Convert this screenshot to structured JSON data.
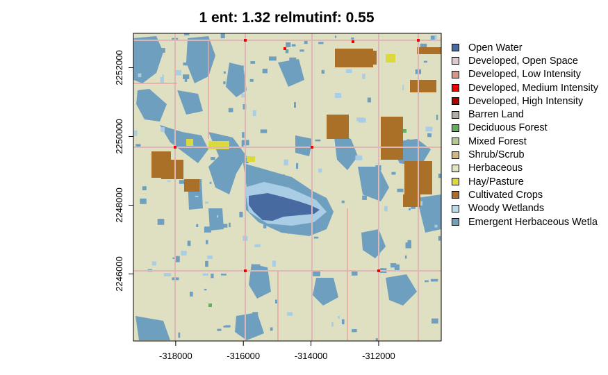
{
  "title": "1 ent: 1.32 relmutinf: 0.55",
  "x_axis": {
    "ticks": [
      {
        "value": -318000,
        "label": "-318000"
      },
      {
        "value": -316000,
        "label": "-316000"
      },
      {
        "value": -314000,
        "label": "-314000"
      },
      {
        "value": -312000,
        "label": "-312000"
      }
    ],
    "range": [
      -319250,
      -310150
    ]
  },
  "y_axis": {
    "ticks": [
      {
        "value": 2246000,
        "label": "2246000"
      },
      {
        "value": 2248000,
        "label": "2248000"
      },
      {
        "value": 2250000,
        "label": "2250000"
      },
      {
        "value": 2252000,
        "label": "2252000"
      }
    ],
    "range": [
      2244050,
      2253000
    ]
  },
  "legend": [
    {
      "label": "Open Water",
      "color": "#476ba1"
    },
    {
      "label": "Developed, Open Space",
      "color": "#ddc9c9"
    },
    {
      "label": "Developed, Low Intensity",
      "color": "#d99482"
    },
    {
      "label": "Developed, Medium Intensity",
      "color": "#ee0000"
    },
    {
      "label": "Developed, High Intensity",
      "color": "#ab0000"
    },
    {
      "label": "Barren Land",
      "color": "#b3aca3"
    },
    {
      "label": "Deciduous Forest",
      "color": "#68ab63"
    },
    {
      "label": "Mixed Forest",
      "color": "#b5c98f"
    },
    {
      "label": "Shrub/Scrub",
      "color": "#ccba7d"
    },
    {
      "label": "Herbaceous",
      "color": "#e3e3c2"
    },
    {
      "label": "Hay/Pasture",
      "color": "#dcd93d"
    },
    {
      "label": "Cultivated Crops",
      "color": "#ab7028"
    },
    {
      "label": "Woody Wetlands",
      "color": "#bad9eb"
    },
    {
      "label": "Emergent Herbaceous Wetla",
      "color": "#70a3ba"
    }
  ],
  "map_colors": {
    "background": "#dfdfc1",
    "wetland": "#6f9fbf",
    "wetland_light": "#a9cde5",
    "open_water": "#476ba1",
    "crops": "#ab7028",
    "road": "#e0b7b7",
    "road_dev": "#e8a3a3",
    "hay": "#dcd93d",
    "developed_medium": "#ee0000",
    "deciduous": "#68ab63"
  }
}
